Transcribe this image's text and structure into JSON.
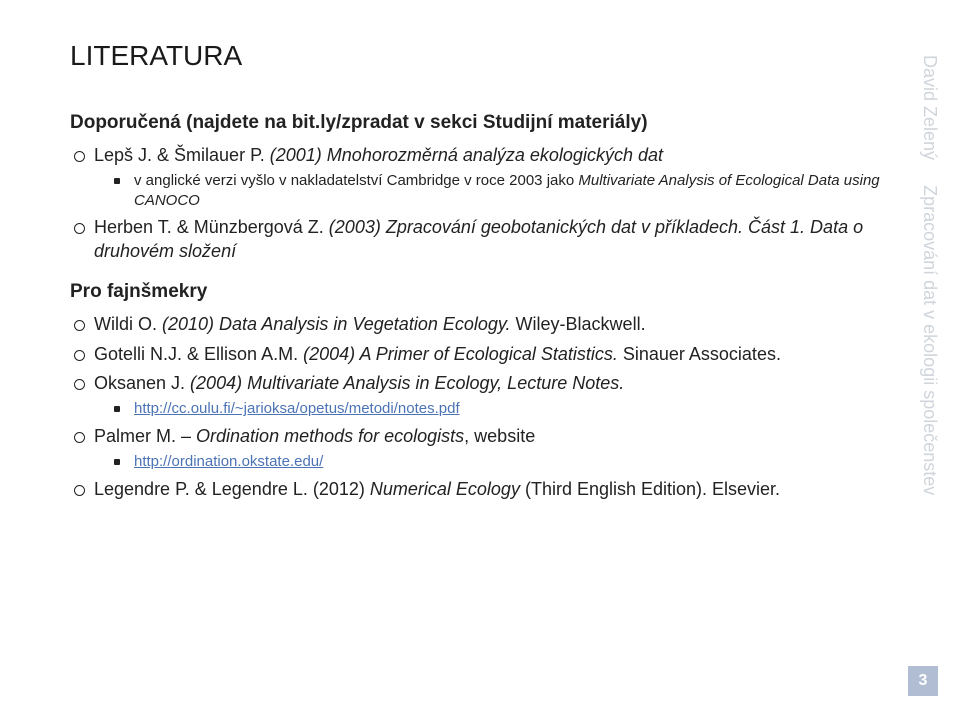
{
  "title": {
    "text": "LITERATURA",
    "fontsize": 28,
    "color": "#1a1a1a"
  },
  "sections": [
    {
      "heading": "Doporučená (najdete na bit.ly/zpradat v sekci Studijní materiály)",
      "heading_fontsize": 19,
      "items": [
        {
          "text_before": "Lepš J. & Šmilauer P.",
          "italic": " (2001) Mnohorozměrná analýza ekologických dat",
          "text_after": "",
          "sub": [
            {
              "text_before": "v anglické verzi vyšlo v nakladatelství Cambridge v roce 2003 jako ",
              "italic": "Multivariate Analysis of Ecological Data using CANOCO",
              "text_after": ""
            }
          ]
        },
        {
          "text_before": "Herben T. & Münzbergová Z. ",
          "italic": "(2003) Zpracování geobotanických dat v příkladech. Část 1. Data o druhovém složení",
          "text_after": ""
        }
      ]
    },
    {
      "heading": "Pro fajnšmekry",
      "heading_fontsize": 19,
      "items": [
        {
          "text_before": "Wildi O. ",
          "italic": "(2010) Data Analysis in Vegetation Ecology.",
          "text_after": " Wiley-Blackwell."
        },
        {
          "text_before": "Gotelli N.J. & Ellison A.M. ",
          "italic": " (2004) A Primer of Ecological Statistics.",
          "text_after": " Sinauer Associates."
        },
        {
          "text_before": "Oksanen J. ",
          "italic": "(2004) Multivariate Analysis in Ecology, Lecture Notes.",
          "text_after": "",
          "sub": [
            {
              "link": "http://cc.oulu.fi/~jarioksa/opetus/metodi/notes.pdf"
            }
          ]
        },
        {
          "text_before": "Palmer M. – ",
          "italic": "Ordination methods for ecologists",
          "text_after": ", website",
          "sub": [
            {
              "link": "http://ordination.okstate.edu/"
            }
          ]
        },
        {
          "text_before": "Legendre P. & Legendre L. (2012) ",
          "italic": "Numerical Ecology",
          "text_after": " (Third English Edition). Elsevier."
        }
      ]
    }
  ],
  "body_fontsize": 18,
  "sub_fontsize": 15,
  "sidebar": {
    "author": "David Zelený",
    "subtitle": "Zpracování dat v ekologii společenstev",
    "fontsize": 18,
    "color": "#cfd5db"
  },
  "page_number": {
    "value": "3",
    "bg": "#b0bdd2",
    "color": "#ffffff",
    "fontsize": 16
  },
  "link_color": "#4b73b5"
}
